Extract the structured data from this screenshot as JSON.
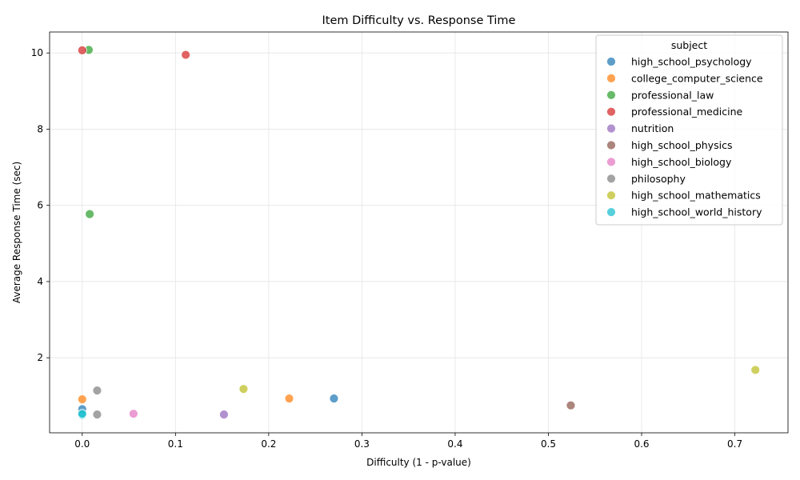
{
  "chart_data": {
    "type": "scatter",
    "title": "Item Difficulty vs. Response Time",
    "xlabel": "Difficulty (1 - p-value)",
    "ylabel": "Average Response Time (sec)",
    "xlim": [
      -0.035,
      0.757
    ],
    "ylim": [
      0.03,
      10.55
    ],
    "xticks": [
      0.0,
      0.1,
      0.2,
      0.3,
      0.4,
      0.5,
      0.6,
      0.7
    ],
    "xtick_labels": [
      "0.0",
      "0.1",
      "0.2",
      "0.3",
      "0.4",
      "0.5",
      "0.6",
      "0.7"
    ],
    "yticks": [
      2,
      4,
      6,
      8,
      10
    ],
    "ytick_labels": [
      "2",
      "4",
      "6",
      "8",
      "10"
    ],
    "grid": true,
    "legend": {
      "title": "subject",
      "placement": "top-right"
    },
    "series": [
      {
        "name": "high_school_psychology",
        "color": "#1f77b4",
        "points": [
          [
            0.0,
            0.65
          ],
          [
            0.27,
            0.93
          ]
        ]
      },
      {
        "name": "college_computer_science",
        "color": "#ff7f0e",
        "points": [
          [
            0.0,
            0.91
          ],
          [
            0.222,
            0.93
          ]
        ]
      },
      {
        "name": "professional_law",
        "color": "#2ca02c",
        "points": [
          [
            0.007,
            10.08
          ],
          [
            0.008,
            5.77
          ]
        ]
      },
      {
        "name": "professional_medicine",
        "color": "#d62728",
        "points": [
          [
            0.0,
            10.07
          ],
          [
            0.111,
            9.95
          ]
        ]
      },
      {
        "name": "nutrition",
        "color": "#9467bd",
        "points": [
          [
            0.152,
            0.51
          ]
        ]
      },
      {
        "name": "high_school_physics",
        "color": "#8c564b",
        "points": [
          [
            0.524,
            0.75
          ]
        ]
      },
      {
        "name": "high_school_biology",
        "color": "#e377c2",
        "points": [
          [
            0.055,
            0.53
          ]
        ]
      },
      {
        "name": "philosophy",
        "color": "#7f7f7f",
        "points": [
          [
            0.016,
            1.14
          ],
          [
            0.016,
            0.51
          ]
        ]
      },
      {
        "name": "high_school_mathematics",
        "color": "#bcbd22",
        "points": [
          [
            0.173,
            1.18
          ],
          [
            0.722,
            1.68
          ]
        ]
      },
      {
        "name": "high_school_world_history",
        "color": "#17becf",
        "points": [
          [
            0.0,
            0.5
          ],
          [
            0.0,
            0.53
          ]
        ]
      }
    ]
  }
}
